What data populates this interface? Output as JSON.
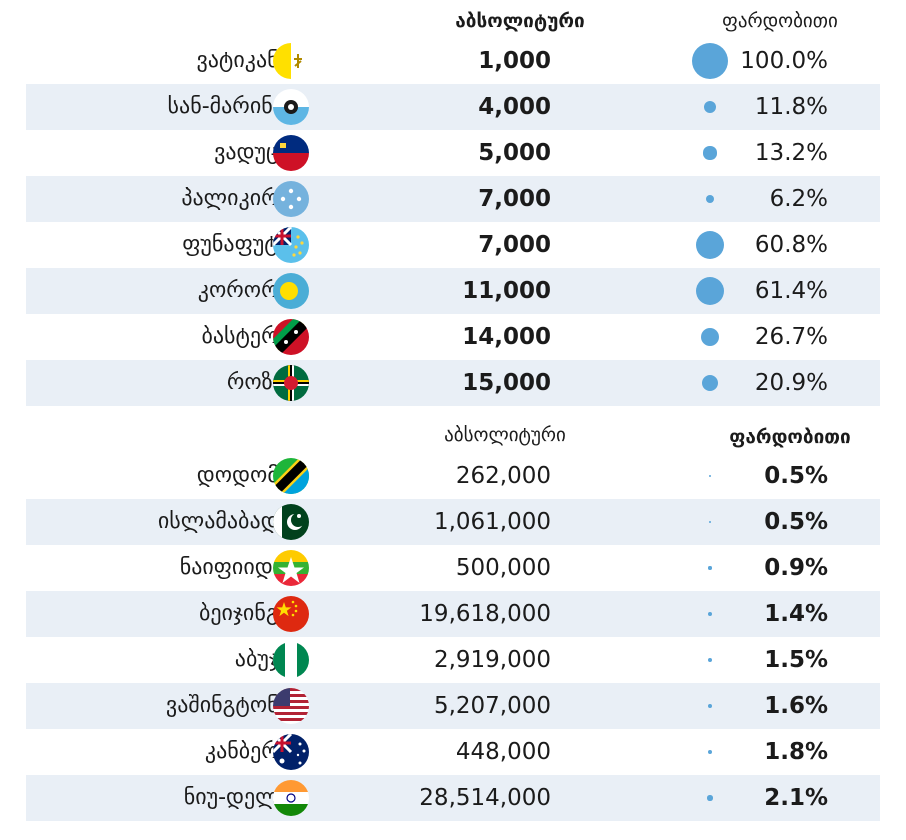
{
  "chart_data": [
    {
      "type": "table",
      "columns": [
        "",
        "აბსოლიტური",
        "ფარდობითი"
      ],
      "header_style": {
        "absolute": "bold",
        "relative": "normal"
      },
      "rows": [
        {
          "city": "ვატიკანი",
          "flag": "vatican-flag-icon",
          "absolute": "1,000",
          "relative": "100.0%",
          "relative_value": 100.0
        },
        {
          "city": "სან-მარინო",
          "flag": "san-marino-flag-icon",
          "absolute": "4,000",
          "relative": "11.8%",
          "relative_value": 11.8
        },
        {
          "city": "ვადუცი",
          "flag": "liechtenstein-flag-icon",
          "absolute": "5,000",
          "relative": "13.2%",
          "relative_value": 13.2
        },
        {
          "city": "პალიკირი",
          "flag": "micronesia-flag-icon",
          "absolute": "7,000",
          "relative": "6.2%",
          "relative_value": 6.2
        },
        {
          "city": "ფუნაფუტი",
          "flag": "tuvalu-flag-icon",
          "absolute": "7,000",
          "relative": "60.8%",
          "relative_value": 60.8
        },
        {
          "city": "კორორი",
          "flag": "palau-flag-icon",
          "absolute": "11,000",
          "relative": "61.4%",
          "relative_value": 61.4
        },
        {
          "city": "ბასტერი",
          "flag": "saint-kitts-flag-icon",
          "absolute": "14,000",
          "relative": "26.7%",
          "relative_value": 26.7
        },
        {
          "city": "როზო",
          "flag": "dominica-flag-icon",
          "absolute": "15,000",
          "relative": "20.9%",
          "relative_value": 20.9
        }
      ]
    },
    {
      "type": "table",
      "columns": [
        "",
        "აბსოლიტური",
        "ფარდობითი"
      ],
      "header_style": {
        "absolute": "normal",
        "relative": "bold"
      },
      "rows": [
        {
          "city": "დოდომა",
          "flag": "tanzania-flag-icon",
          "absolute": "262,000",
          "relative": "0.5%",
          "relative_value": 0.5
        },
        {
          "city": "ისლამაბადი",
          "flag": "pakistan-flag-icon",
          "absolute": "1,061,000",
          "relative": "0.5%",
          "relative_value": 0.5
        },
        {
          "city": "ნაიფიიდო",
          "flag": "myanmar-flag-icon",
          "absolute": "500,000",
          "relative": "0.9%",
          "relative_value": 0.9
        },
        {
          "city": "ბეიჯინგი",
          "flag": "china-flag-icon",
          "absolute": "19,618,000",
          "relative": "1.4%",
          "relative_value": 1.4
        },
        {
          "city": "აბუჯა",
          "flag": "nigeria-flag-icon",
          "absolute": "2,919,000",
          "relative": "1.5%",
          "relative_value": 1.5
        },
        {
          "city": "ვაშინგტონი",
          "flag": "usa-flag-icon",
          "absolute": "5,207,000",
          "relative": "1.6%",
          "relative_value": 1.6
        },
        {
          "city": "კანბერა",
          "flag": "australia-flag-icon",
          "absolute": "448,000",
          "relative": "1.8%",
          "relative_value": 1.8
        },
        {
          "city": "ნიუ-დელი",
          "flag": "india-flag-icon",
          "absolute": "28,514,000",
          "relative": "2.1%",
          "relative_value": 2.1
        }
      ]
    }
  ],
  "colors": {
    "dot": "#5aa5d9",
    "shade": "#e9eff6"
  }
}
